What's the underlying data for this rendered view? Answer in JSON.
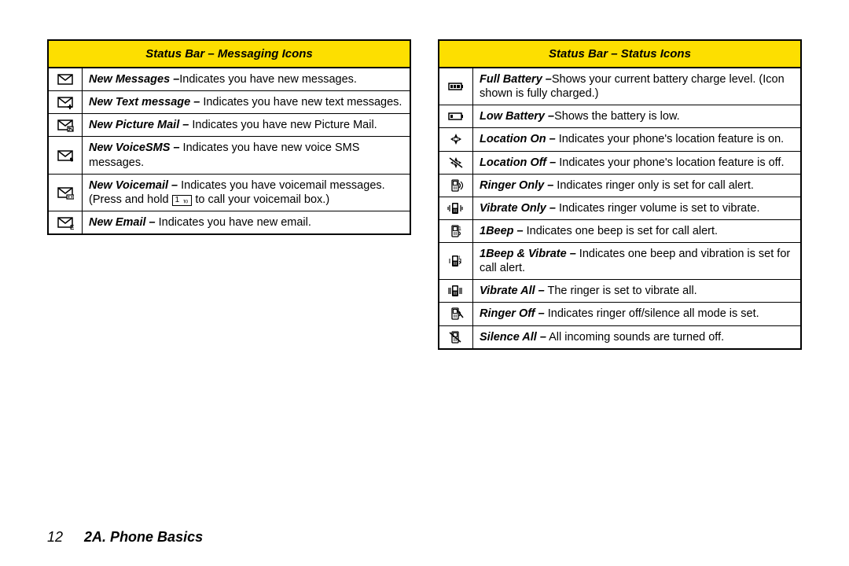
{
  "colors": {
    "header_bg": "#fddf00",
    "border": "#000000",
    "text": "#000000",
    "background": "#ffffff"
  },
  "typography": {
    "body_fontsize": 14.5,
    "header_fontsize": 15,
    "footer_fontsize": 18,
    "font_family": "Helvetica"
  },
  "left_table": {
    "title": "Status Bar – Messaging Icons",
    "rows": [
      {
        "icon": "envelope",
        "term": "New Messages –",
        "desc": "Indicates you have new messages."
      },
      {
        "icon": "envelope-plus",
        "term": "New Text message –",
        "desc": " Indicates you have new text messages."
      },
      {
        "icon": "envelope-pic",
        "term": "New Picture Mail –",
        "desc": " Indicates you have new Picture Mail."
      },
      {
        "icon": "envelope-voice",
        "term": "New VoiceSMS –",
        "desc": " Indicates you have new voice SMS messages."
      },
      {
        "icon": "envelope-tape",
        "term": "New Voicemail –",
        "desc_pre": " Indicates you have voicemail messages. (Press and hold ",
        "key": "1 ⏨",
        "desc_post": " to call your voicemail box.)"
      },
      {
        "icon": "envelope-e",
        "term": "New Email –",
        "desc": " Indicates you have new email."
      }
    ]
  },
  "right_table": {
    "title": "Status Bar – Status Icons",
    "rows": [
      {
        "icon": "battery-full",
        "term": "Full Battery  –",
        "desc": "Shows your current battery charge level. (Icon shown is fully charged.)"
      },
      {
        "icon": "battery-low",
        "term": "Low Battery  –",
        "desc": "Shows the battery is low."
      },
      {
        "icon": "location-on",
        "term": "Location On –",
        "desc": " Indicates your phone's location feature is on."
      },
      {
        "icon": "location-off",
        "term": "Location Off –",
        "desc": " Indicates your phone's location feature is off."
      },
      {
        "icon": "phone-ringer",
        "term": "Ringer Only –",
        "desc": " Indicates ringer only is set for call alert."
      },
      {
        "icon": "phone-vibrate",
        "term": "Vibrate Only –",
        "desc": " Indicates ringer volume is set to vibrate."
      },
      {
        "icon": "phone-1beep",
        "term": "1Beep –",
        "desc": " Indicates one beep is set for call alert."
      },
      {
        "icon": "phone-1bv",
        "term": "1Beep & Vibrate –",
        "desc": " Indicates one beep and vibration is set for call alert."
      },
      {
        "icon": "phone-viball",
        "term": "Vibrate All –",
        "desc": " The ringer is set to vibrate all."
      },
      {
        "icon": "phone-ringoff",
        "term": "Ringer Off –",
        "desc": " Indicates ringer off/silence all mode is set."
      },
      {
        "icon": "phone-silence",
        "term": "Silence All –",
        "desc": " All incoming sounds are turned off."
      }
    ]
  },
  "footer": {
    "page_number": "12",
    "section": "2A. Phone Basics"
  }
}
